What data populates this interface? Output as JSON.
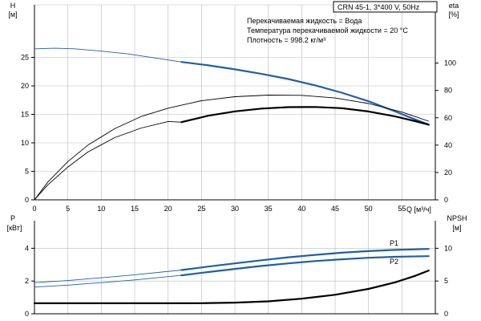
{
  "title": "CRN 45-1, 3*400 V, 50Hz",
  "info_lines": [
    "Перекачиваемая жидкость = Вода",
    "Температура перекачиваемой жидкости = 20 °C",
    "Плотность = 998.2 кг/м³"
  ],
  "colors": {
    "blue": "#1f5fa8",
    "black": "#000000",
    "grid": "#b9b9b9"
  },
  "chart_data": [
    {
      "type": "line",
      "x_label": "Q [м³/ч]",
      "xlim": [
        0,
        60
      ],
      "x_ticks": [
        0,
        5,
        10,
        15,
        20,
        25,
        30,
        35,
        40,
        45,
        50,
        55
      ],
      "y_left": {
        "label": [
          "H",
          "[м]"
        ],
        "ylim": [
          0,
          30
        ],
        "ticks": [
          0,
          5,
          10,
          15,
          20,
          25
        ]
      },
      "y_right": {
        "label": [
          "eta",
          "[%]"
        ],
        "ylim": [
          0,
          125
        ],
        "ticks": [
          0,
          20,
          40,
          60,
          80,
          100
        ]
      },
      "grid": true,
      "series": [
        {
          "axis": "left",
          "color": "blue",
          "thin_x": [
            0,
            3,
            6,
            10,
            14,
            18,
            22
          ],
          "thin_y": [
            26.5,
            26.6,
            26.5,
            26.1,
            25.6,
            24.9,
            24.2
          ],
          "bold_x": [
            22,
            26,
            30,
            34,
            38,
            42,
            46,
            50,
            54,
            57,
            59
          ],
          "bold_y": [
            24.2,
            23.6,
            22.9,
            22.1,
            21.2,
            20.1,
            18.8,
            17.3,
            15.5,
            14.1,
            13.2
          ]
        },
        {
          "axis": "right",
          "color": "black",
          "thin_x": [
            0,
            2,
            5,
            8,
            12,
            16,
            20,
            25,
            30,
            35,
            40,
            45,
            50,
            55,
            59
          ],
          "thin_y": [
            0,
            13,
            28,
            40,
            52,
            61,
            67,
            72.5,
            75.4,
            76.6,
            76.4,
            74.5,
            70.4,
            64.2,
            57.5
          ]
        },
        {
          "axis": "right",
          "color": "black",
          "thin_x": [
            0,
            2,
            5,
            8,
            12,
            16,
            20,
            22
          ],
          "thin_y": [
            0,
            11,
            24,
            35,
            45.5,
            52.5,
            57.3,
            56.8
          ],
          "bold_x": [
            22,
            26,
            30,
            34,
            38,
            42,
            46,
            50,
            54,
            57,
            59
          ],
          "bold_y": [
            56.8,
            61.5,
            64.7,
            66.7,
            67.8,
            67.9,
            67,
            64.6,
            61,
            57.5,
            55
          ]
        }
      ]
    },
    {
      "type": "line",
      "xlim": [
        0,
        60
      ],
      "x_ticks": [],
      "y_left": {
        "label": [
          "P",
          "[кВт]"
        ],
        "ylim": [
          0,
          5
        ],
        "ticks": [
          0,
          2,
          4
        ]
      },
      "y_right": {
        "label": [
          "NPSH",
          "[м]"
        ],
        "ylim": [
          0,
          12.5
        ],
        "ticks": [
          0,
          5,
          10
        ]
      },
      "grid": true,
      "series": [
        {
          "name": "P1",
          "axis": "left",
          "color": "blue",
          "thin_x": [
            0,
            5,
            10,
            15,
            22
          ],
          "thin_y": [
            1.9,
            2.03,
            2.2,
            2.38,
            2.67
          ],
          "bold_x": [
            22,
            26,
            30,
            34,
            38,
            42,
            46,
            50,
            54,
            59
          ],
          "bold_y": [
            2.67,
            2.88,
            3.08,
            3.27,
            3.45,
            3.6,
            3.73,
            3.83,
            3.9,
            3.96
          ]
        },
        {
          "name": "P2",
          "axis": "left",
          "color": "blue",
          "thin_x": [
            0,
            5,
            10,
            15,
            22
          ],
          "thin_y": [
            1.63,
            1.75,
            1.9,
            2.07,
            2.35
          ],
          "bold_x": [
            22,
            26,
            30,
            34,
            38,
            42,
            46,
            50,
            54,
            59
          ],
          "bold_y": [
            2.35,
            2.55,
            2.74,
            2.92,
            3.08,
            3.22,
            3.33,
            3.42,
            3.48,
            3.52
          ]
        },
        {
          "axis": "right",
          "color": "black",
          "bold_x": [
            0,
            5,
            10,
            15,
            20,
            25,
            30,
            35,
            40,
            45,
            50,
            54,
            57,
            59
          ],
          "bold_y": [
            1.6,
            1.6,
            1.6,
            1.6,
            1.6,
            1.62,
            1.7,
            1.9,
            2.3,
            2.9,
            3.8,
            4.8,
            5.8,
            6.6
          ]
        }
      ]
    }
  ]
}
